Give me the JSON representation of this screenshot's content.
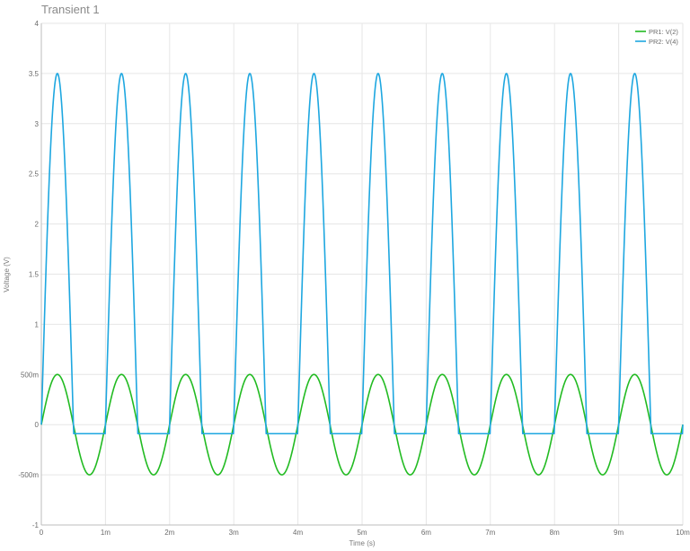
{
  "chart_data": {
    "type": "line",
    "title": "Transient 1",
    "xlabel": "Time (s)",
    "ylabel": "Voltage (V)",
    "xlim": [
      0,
      0.01
    ],
    "ylim": [
      -1,
      4
    ],
    "x_ticks": [
      {
        "value": 0,
        "label": "0"
      },
      {
        "value": 0.001,
        "label": "1m"
      },
      {
        "value": 0.002,
        "label": "2m"
      },
      {
        "value": 0.003,
        "label": "3m"
      },
      {
        "value": 0.004,
        "label": "4m"
      },
      {
        "value": 0.005,
        "label": "5m"
      },
      {
        "value": 0.006,
        "label": "6m"
      },
      {
        "value": 0.007,
        "label": "7m"
      },
      {
        "value": 0.008,
        "label": "8m"
      },
      {
        "value": 0.009,
        "label": "9m"
      },
      {
        "value": 0.01,
        "label": "10m"
      }
    ],
    "y_ticks": [
      {
        "value": -1,
        "label": "-1"
      },
      {
        "value": -0.5,
        "label": "-500m"
      },
      {
        "value": 0,
        "label": "0"
      },
      {
        "value": 0.5,
        "label": "500m"
      },
      {
        "value": 1,
        "label": "1"
      },
      {
        "value": 1.5,
        "label": "1.5"
      },
      {
        "value": 2,
        "label": "2"
      },
      {
        "value": 2.5,
        "label": "2.5"
      },
      {
        "value": 3,
        "label": "3"
      },
      {
        "value": 3.5,
        "label": "3.5"
      },
      {
        "value": 4,
        "label": "4"
      }
    ],
    "grid": true,
    "legend_position": "top-right",
    "series": [
      {
        "name": "PR1: V(2)",
        "color": "#22bb22",
        "waveform": "sine",
        "amplitude": 0.5,
        "offset": 0,
        "frequency_hz": 1000,
        "min": -0.5,
        "max": 0.5
      },
      {
        "name": "PR2: V(4)",
        "color": "#1ea7e0",
        "waveform": "clipped sine",
        "frequency_hz": 1000,
        "peak": 3.5,
        "floor": -0.09,
        "min": -0.09,
        "max": 3.5
      }
    ]
  }
}
